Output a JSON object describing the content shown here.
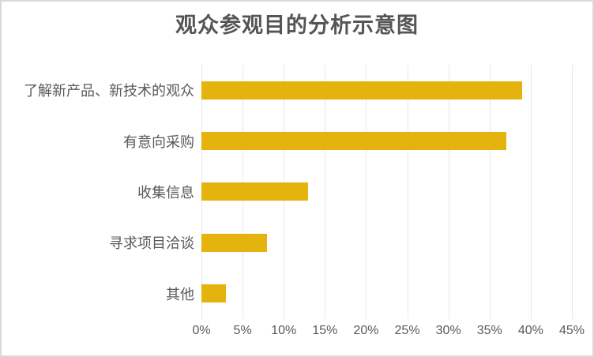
{
  "window": {
    "background": "#ffffff",
    "border_color": "#d9d9d9"
  },
  "chart_data": {
    "type": "bar",
    "orientation": "horizontal",
    "title": "观众参观目的分析示意图",
    "categories": [
      "了解新产品、新技术的观众",
      "有意向采购",
      "收集信息",
      "寻求项目洽谈",
      "其他"
    ],
    "values": [
      39,
      37,
      13,
      8,
      3
    ],
    "unit": "%",
    "xlabel": "",
    "ylabel": "",
    "xlim": [
      0,
      45
    ],
    "x_ticks": [
      "0%",
      "5%",
      "10%",
      "15%",
      "20%",
      "25%",
      "30%",
      "35%",
      "40%",
      "45%"
    ],
    "grid": true,
    "legend": false,
    "data_labels": false,
    "bar_color": "#e4b30d",
    "title_color": "#555555",
    "label_color": "#595959",
    "tick_label_color": "#595959",
    "gridline_color": "#e9e9e9"
  }
}
